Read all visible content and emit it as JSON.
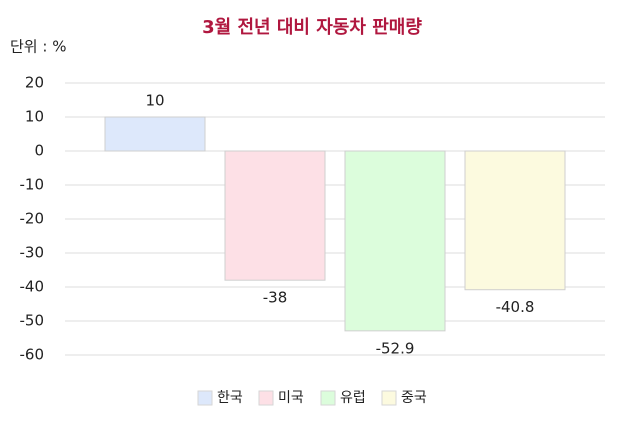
{
  "chart_data": {
    "type": "bar",
    "title": "3월 전년 대비 자동차 판매량",
    "y_label": "단위 : %",
    "categories": [
      "한국",
      "미국",
      "유럽",
      "중국"
    ],
    "values": [
      10,
      -38,
      -52.9,
      -40.8
    ],
    "colors": [
      "#dde8fb",
      "#fde0e6",
      "#dcfddc",
      "#fcfadf"
    ],
    "ylim": [
      -60,
      20
    ],
    "yticks": [
      20,
      10,
      0,
      -10,
      -20,
      -30,
      -40,
      -50,
      -60
    ],
    "grid": true,
    "legend": "bottom"
  }
}
